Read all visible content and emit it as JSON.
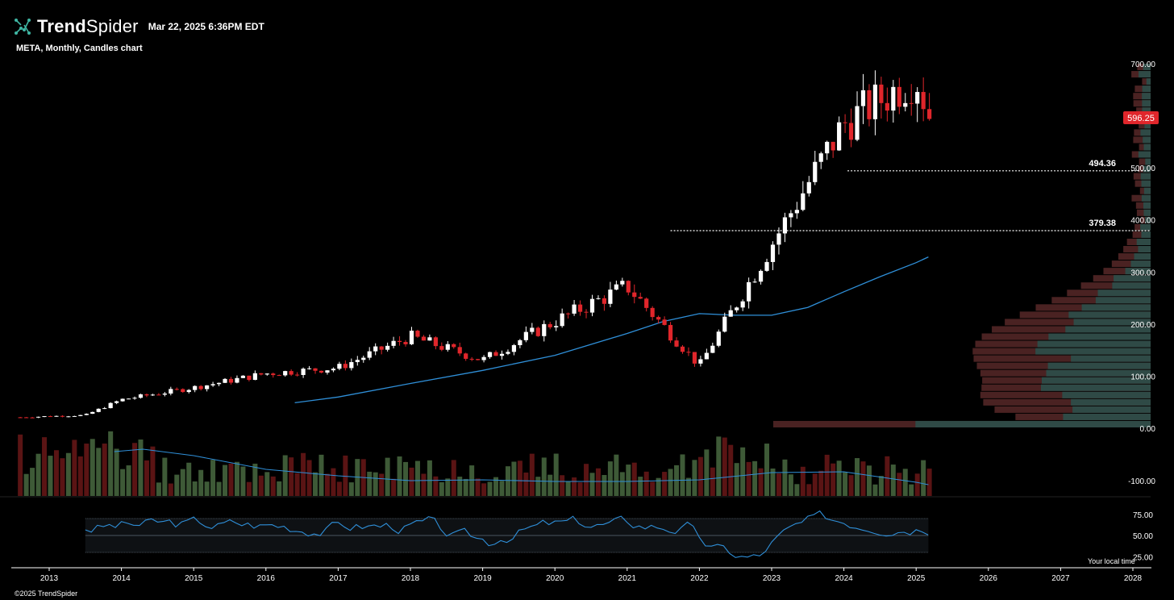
{
  "header": {
    "brand_bold": "Trend",
    "brand_light": "Spider",
    "timestamp": "Mar 22, 2025 6:36PM EDT",
    "subtitle": "META, Monthly, Candles chart",
    "copyright": "©2025 TrendSpider",
    "local_time_label": "Your local time"
  },
  "colors": {
    "background": "#000000",
    "up": "#ffffff",
    "down": "#e0262b",
    "ma": "#2f8fd8",
    "vol_up": "#3e5a37",
    "vol_down": "#5a1414",
    "profile_up": "#2f4a46",
    "profile_down": "#4a2222",
    "price_tag": "#e0262b"
  },
  "chart_data": {
    "type": "candlestick",
    "symbol": "META",
    "timeframe": "Monthly",
    "x_axis": {
      "labels": [
        "2013",
        "2014",
        "2015",
        "2016",
        "2017",
        "2018",
        "2019",
        "2020",
        "2021",
        "2022",
        "2023",
        "2024",
        "2025",
        "2026",
        "2027",
        "2028"
      ]
    },
    "price_axis": {
      "ticks": [
        "700.00",
        "600.00",
        "500.00",
        "400.00",
        "300.00",
        "200.00",
        "100.00",
        "0.00"
      ],
      "min": 0,
      "max": 700,
      "volume_tick": "-100.00"
    },
    "last_price": "596.25",
    "levels": [
      {
        "label": "494.36",
        "value": 494.36
      },
      {
        "label": "379.38",
        "value": 379.38
      }
    ],
    "candles_yearly_closes": [
      [
        2012.6,
        21
      ],
      [
        2013,
        23
      ],
      [
        2013.5,
        25
      ],
      [
        2014,
        55
      ],
      [
        2015,
        78
      ],
      [
        2016,
        105
      ],
      [
        2017,
        116
      ],
      [
        2018,
        176
      ],
      [
        2019,
        131
      ],
      [
        2020,
        205
      ],
      [
        2021,
        273
      ],
      [
        2022,
        120
      ],
      [
        2023,
        353
      ],
      [
        2024,
        585
      ],
      [
        2025,
        676
      ],
      [
        2025.2,
        596
      ]
    ],
    "moving_average": [
      [
        2016.4,
        49
      ],
      [
        2017,
        60
      ],
      [
        2018,
        86
      ],
      [
        2019,
        111
      ],
      [
        2020,
        140
      ],
      [
        2021,
        182
      ],
      [
        2021.5,
        205
      ],
      [
        2022,
        220
      ],
      [
        2022.5,
        217
      ],
      [
        2023,
        217
      ],
      [
        2023.5,
        232
      ],
      [
        2024,
        262
      ],
      [
        2024.5,
        291
      ],
      [
        2025,
        318
      ],
      [
        2025.17,
        329
      ]
    ],
    "oscillator": {
      "ticks": [
        "75.00",
        "50.00",
        "25.00"
      ],
      "upper": 70,
      "mid": 50,
      "lower": 30
    }
  }
}
